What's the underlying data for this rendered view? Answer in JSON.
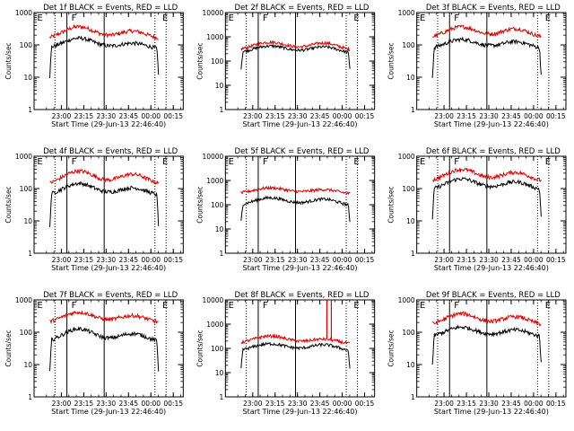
{
  "figure": {
    "title_suffix": " BLACK = Events, RED = LLD",
    "xlabel": "Start Time (29-Jun-13 22:46:40)",
    "ylabel": "Counts/sec",
    "xticklabels": [
      "23:00",
      "23:15",
      "23:30",
      "23:45",
      "00:00",
      "00:15"
    ],
    "yticklabels": [
      "1",
      "10",
      "100",
      "1000",
      "10000"
    ],
    "marker_labels": [
      "E",
      "F",
      "E"
    ],
    "colors": {
      "events": "#000000",
      "lld": "#dd0000",
      "axis": "#000000"
    }
  },
  "chart_data": [
    {
      "type": "line",
      "title": "Det 1f BLACK = Events, RED = LLD",
      "detector": "Det 1f",
      "xlabel": "Start Time (29-Jun-13 22:46:40)",
      "ylabel": "Counts/sec",
      "xlim_min": [
        -5,
        95
      ],
      "ylim_log10": [
        0,
        3
      ],
      "yticks": [
        "1",
        "10",
        "100",
        "1000"
      ],
      "xticks_min": [
        13.3,
        28.3,
        43.3,
        58.3,
        73.3,
        88.3
      ],
      "xticklabels": [
        "23:00",
        "23:15",
        "23:30",
        "23:45",
        "00:00",
        "00:15"
      ],
      "solid_lines_min": [
        17,
        42
      ],
      "dotted_lines_min": [
        9,
        76,
        83.5
      ],
      "marker_labels_min": {
        "E": [
          -3,
          81
        ],
        "F": [
          20
        ]
      },
      "data_range_min": [
        5.5,
        78.5
      ],
      "series": [
        {
          "name": "Events",
          "color": "#000000",
          "base": 70,
          "peaks": [
            [
              25,
              2.3,
              11
            ],
            [
              61,
              1.6,
              10
            ]
          ],
          "start_dip": 8,
          "end_dip": 8
        },
        {
          "name": "LLD",
          "color": "#dd0000",
          "base": 140,
          "peaks": [
            [
              25,
              2.6,
              11
            ],
            [
              61,
              1.9,
              10
            ]
          ],
          "start_dip": 0,
          "end_dip": 0
        }
      ]
    },
    {
      "type": "line",
      "title": "Det 2f BLACK = Events, RED = LLD",
      "detector": "Det 2f",
      "xlabel": "Start Time (29-Jun-13 22:46:40)",
      "ylabel": "Counts/sec",
      "xlim_min": [
        -5,
        95
      ],
      "ylim_log10": [
        0,
        4
      ],
      "yticks": [
        "1",
        "10",
        "100",
        "1000",
        "10000"
      ],
      "xticks_min": [
        13.3,
        28.3,
        43.3,
        58.3,
        73.3,
        88.3
      ],
      "xticklabels": [
        "23:00",
        "23:15",
        "23:30",
        "23:45",
        "00:00",
        "00:15"
      ],
      "solid_lines_min": [
        17,
        42
      ],
      "dotted_lines_min": [
        9,
        76,
        83.5
      ],
      "marker_labels_min": {
        "E": [
          -3,
          81
        ],
        "F": [
          20
        ]
      },
      "data_range_min": [
        5.5,
        78.5
      ],
      "series": [
        {
          "name": "Events",
          "color": "#000000",
          "base": 190,
          "peaks": [
            [
              25,
              2.2,
              12
            ],
            [
              61,
              2.0,
              10
            ]
          ],
          "start_dip": 5,
          "end_dip": 5
        },
        {
          "name": "LLD",
          "color": "#dd0000",
          "base": 250,
          "peaks": [
            [
              25,
              2.4,
              12
            ],
            [
              61,
              2.2,
              10
            ]
          ],
          "start_dip": 0,
          "end_dip": 0
        }
      ]
    },
    {
      "type": "line",
      "title": "Det 3f BLACK = Events, RED = LLD",
      "detector": "Det 3f",
      "xlabel": "Start Time (29-Jun-13 22:46:40)",
      "ylabel": "Counts/sec",
      "xlim_min": [
        -5,
        95
      ],
      "ylim_log10": [
        0,
        3
      ],
      "yticks": [
        "1",
        "10",
        "100",
        "1000"
      ],
      "xticks_min": [
        13.3,
        28.3,
        43.3,
        58.3,
        73.3,
        88.3
      ],
      "xticklabels": [
        "23:00",
        "23:15",
        "23:30",
        "23:45",
        "00:00",
        "00:15"
      ],
      "solid_lines_min": [
        17,
        42
      ],
      "dotted_lines_min": [
        9,
        76,
        83.5
      ],
      "marker_labels_min": {
        "E": [
          -3,
          81
        ],
        "F": [
          20
        ]
      },
      "data_range_min": [
        5.5,
        78.5
      ],
      "series": [
        {
          "name": "Events",
          "color": "#000000",
          "base": 70,
          "peaks": [
            [
              25,
              2.1,
              11
            ],
            [
              61,
              1.8,
              10
            ]
          ],
          "start_dip": 8,
          "end_dip": 8
        },
        {
          "name": "LLD",
          "color": "#dd0000",
          "base": 150,
          "peaks": [
            [
              25,
              2.4,
              11
            ],
            [
              61,
              2.1,
              10
            ]
          ],
          "start_dip": 0,
          "end_dip": 0
        }
      ]
    },
    {
      "type": "line",
      "title": "Det 4f BLACK = Events, RED = LLD",
      "detector": "Det 4f",
      "xlabel": "Start Time (29-Jun-13 22:46:40)",
      "ylabel": "Counts/sec",
      "xlim_min": [
        -5,
        95
      ],
      "ylim_log10": [
        0,
        3
      ],
      "yticks": [
        "1",
        "10",
        "100",
        "1000"
      ],
      "xticks_min": [
        13.3,
        28.3,
        43.3,
        58.3,
        73.3,
        88.3
      ],
      "xticklabels": [
        "23:00",
        "23:15",
        "23:30",
        "23:45",
        "00:00",
        "00:15"
      ],
      "solid_lines_min": [
        17,
        42
      ],
      "dotted_lines_min": [
        9,
        76,
        83.5
      ],
      "marker_labels_min": {
        "E": [
          -3,
          81
        ],
        "F": [
          20
        ]
      },
      "data_range_min": [
        5.5,
        78.5
      ],
      "series": [
        {
          "name": "Events",
          "color": "#000000",
          "base": 55,
          "peaks": [
            [
              25,
              2.6,
              11
            ],
            [
              61,
              1.9,
              10
            ]
          ],
          "start_dip": 10,
          "end_dip": 10
        },
        {
          "name": "LLD",
          "color": "#dd0000",
          "base": 120,
          "peaks": [
            [
              25,
              2.9,
              11
            ],
            [
              61,
              2.3,
              10
            ]
          ],
          "start_dip": 0,
          "end_dip": 0
        }
      ]
    },
    {
      "type": "line",
      "title": "Det 5f BLACK = Events, RED = LLD",
      "detector": "Det 5f",
      "xlabel": "Start Time (29-Jun-13 22:46:40)",
      "ylabel": "Counts/sec",
      "xlim_min": [
        -5,
        95
      ],
      "ylim_log10": [
        0,
        4
      ],
      "yticks": [
        "1",
        "10",
        "100",
        "1000",
        "10000"
      ],
      "xticks_min": [
        13.3,
        28.3,
        43.3,
        58.3,
        73.3,
        88.3
      ],
      "xticklabels": [
        "23:00",
        "23:15",
        "23:30",
        "23:45",
        "00:00",
        "00:15"
      ],
      "solid_lines_min": [
        17,
        42
      ],
      "dotted_lines_min": [
        9,
        76,
        83.5
      ],
      "marker_labels_min": {
        "E": [
          -3,
          81
        ],
        "F": [
          20
        ]
      },
      "data_range_min": [
        5.5,
        78.5
      ],
      "series": [
        {
          "name": "Events",
          "color": "#000000",
          "base": 80,
          "peaks": [
            [
              25,
              2.4,
              12
            ],
            [
              61,
              2.1,
              10
            ]
          ],
          "start_dip": 5,
          "end_dip": 5
        },
        {
          "name": "LLD",
          "color": "#dd0000",
          "base": 260,
          "peaks": [
            [
              25,
              1.9,
              12
            ],
            [
              61,
              1.6,
              10
            ]
          ],
          "start_dip": 0,
          "end_dip": 0
        }
      ]
    },
    {
      "type": "line",
      "title": "Det 6f BLACK = Events, RED = LLD",
      "detector": "Det 6f",
      "xlabel": "Start Time (29-Jun-13 22:46:40)",
      "ylabel": "Counts/sec",
      "xlim_min": [
        -5,
        95
      ],
      "ylim_log10": [
        0,
        3
      ],
      "yticks": [
        "1",
        "10",
        "100",
        "1000"
      ],
      "xticks_min": [
        13.3,
        28.3,
        43.3,
        58.3,
        73.3,
        88.3
      ],
      "xticklabels": [
        "23:00",
        "23:15",
        "23:30",
        "23:45",
        "00:00",
        "00:15"
      ],
      "solid_lines_min": [
        17,
        42
      ],
      "dotted_lines_min": [
        9,
        76,
        83.5
      ],
      "marker_labels_min": {
        "E": [
          -3,
          81
        ],
        "F": [
          20
        ]
      },
      "data_range_min": [
        5.5,
        78.5
      ],
      "series": [
        {
          "name": "Events",
          "color": "#000000",
          "base": 80,
          "peaks": [
            [
              25,
              2.5,
              11
            ],
            [
              61,
              2.0,
              10
            ]
          ],
          "start_dip": 8,
          "end_dip": 8
        },
        {
          "name": "LLD",
          "color": "#dd0000",
          "base": 150,
          "peaks": [
            [
              25,
              2.6,
              11
            ],
            [
              61,
              2.1,
              10
            ]
          ],
          "start_dip": 0,
          "end_dip": 0
        }
      ]
    },
    {
      "type": "line",
      "title": "Det 7f BLACK = Events, RED = LLD",
      "detector": "Det 7f",
      "xlabel": "Start Time (29-Jun-13 22:46:40)",
      "ylabel": "Counts/sec",
      "xlim_min": [
        -5,
        95
      ],
      "ylim_log10": [
        0,
        3
      ],
      "yticks": [
        "1",
        "10",
        "100",
        "1000"
      ],
      "xticks_min": [
        13.3,
        28.3,
        43.3,
        58.3,
        73.3,
        88.3
      ],
      "xticklabels": [
        "23:00",
        "23:15",
        "23:30",
        "23:45",
        "00:00",
        "00:15"
      ],
      "solid_lines_min": [
        17,
        42
      ],
      "dotted_lines_min": [
        9,
        76,
        83.5
      ],
      "marker_labels_min": {
        "E": [
          -3,
          81
        ],
        "F": [
          20
        ]
      },
      "data_range_min": [
        5.5,
        78.5
      ],
      "series": [
        {
          "name": "Events",
          "color": "#000000",
          "base": 45,
          "peaks": [
            [
              25,
              2.8,
              11
            ],
            [
              61,
              2.0,
              10
            ]
          ],
          "start_dip": 10,
          "end_dip": 10
        },
        {
          "name": "LLD",
          "color": "#dd0000",
          "base": 180,
          "peaks": [
            [
              25,
              2.3,
              11
            ],
            [
              61,
              1.8,
              10
            ]
          ],
          "start_dip": 0,
          "end_dip": 0
        }
      ]
    },
    {
      "type": "line",
      "title": "Det 8f BLACK = Events, RED = LLD",
      "detector": "Det 8f",
      "xlabel": "Start Time (29-Jun-13 22:46:40)",
      "ylabel": "Counts/sec",
      "xlim_min": [
        -5,
        95
      ],
      "ylim_log10": [
        0,
        4
      ],
      "yticks": [
        "1",
        "10",
        "100",
        "1000",
        "10000"
      ],
      "xticks_min": [
        13.3,
        28.3,
        43.3,
        58.3,
        73.3,
        88.3
      ],
      "xticklabels": [
        "23:00",
        "23:15",
        "23:30",
        "23:45",
        "00:00",
        "00:15"
      ],
      "solid_lines_min": [
        17,
        42
      ],
      "dotted_lines_min": [
        9,
        76,
        83.5
      ],
      "marker_labels_min": {
        "E": [
          -3,
          81
        ],
        "F": [
          20
        ]
      },
      "data_range_min": [
        5.5,
        78.5
      ],
      "spike": {
        "range_min": [
          63,
          66
        ],
        "peak_counts": 10000
      },
      "series": [
        {
          "name": "Events",
          "color": "#000000",
          "base": 70,
          "peaks": [
            [
              25,
              2.2,
              12
            ],
            [
              61,
              2.0,
              10
            ]
          ],
          "start_dip": 6,
          "end_dip": 6
        },
        {
          "name": "LLD",
          "color": "#dd0000",
          "base": 140,
          "peaks": [
            [
              25,
              2.3,
              12
            ],
            [
              61,
              1.7,
              10
            ]
          ],
          "start_dip": 0,
          "end_dip": 0
        }
      ]
    },
    {
      "type": "line",
      "title": "Det 9f BLACK = Events, RED = LLD",
      "detector": "Det 9f",
      "xlabel": "Start Time (29-Jun-13 22:46:40)",
      "ylabel": "Counts/sec",
      "xlim_min": [
        -5,
        95
      ],
      "ylim_log10": [
        0,
        3
      ],
      "yticks": [
        "1",
        "10",
        "100",
        "1000"
      ],
      "xticks_min": [
        13.3,
        28.3,
        43.3,
        58.3,
        73.3,
        88.3
      ],
      "xticklabels": [
        "23:00",
        "23:15",
        "23:30",
        "23:45",
        "00:00",
        "00:15"
      ],
      "solid_lines_min": [
        17,
        42
      ],
      "dotted_lines_min": [
        9,
        76,
        83.5
      ],
      "marker_labels_min": {
        "E": [
          -3,
          81
        ],
        "F": [
          20
        ]
      },
      "data_range_min": [
        5.5,
        78.5
      ],
      "series": [
        {
          "name": "Events",
          "color": "#000000",
          "base": 65,
          "peaks": [
            [
              25,
              2.2,
              11
            ],
            [
              61,
              1.8,
              10
            ]
          ],
          "start_dip": 8,
          "end_dip": 8
        },
        {
          "name": "LLD",
          "color": "#dd0000",
          "base": 150,
          "peaks": [
            [
              25,
              2.5,
              11
            ],
            [
              61,
              2.0,
              10
            ]
          ],
          "start_dip": 0,
          "end_dip": 0
        }
      ]
    }
  ]
}
